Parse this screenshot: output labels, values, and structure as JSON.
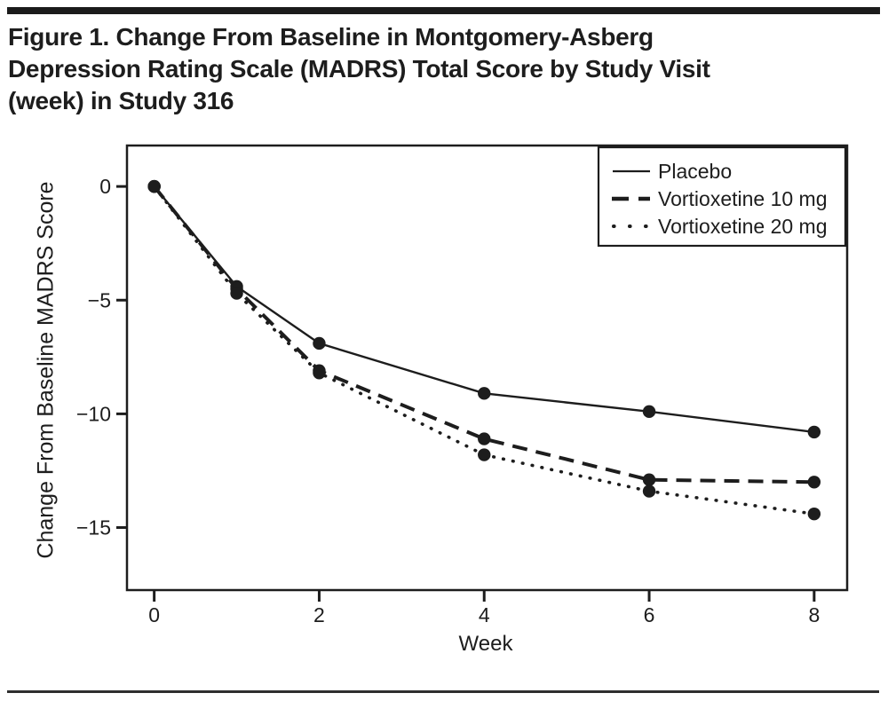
{
  "title_lines": [
    "Figure 1. Change From Baseline in Montgomery-Asberg",
    "Depression Rating Scale (MADRS) Total Score by Study Visit",
    "(week) in Study 316"
  ],
  "chart_data": {
    "type": "line",
    "title": "Figure 1. Change From Baseline in Montgomery-Asberg Depression Rating Scale (MADRS) Total Score by Study Visit (week) in Study 316",
    "xlabel": "Week",
    "ylabel": "Change From Baseline MADRS Score",
    "x": [
      0,
      1,
      2,
      4,
      6,
      8
    ],
    "xticks": [
      0,
      2,
      4,
      6,
      8
    ],
    "xtick_labels": [
      "0",
      "2",
      "4",
      "6",
      "8"
    ],
    "yticks": [
      0,
      -5,
      -10,
      -15
    ],
    "ytick_labels": [
      "0",
      "−5",
      "−10",
      "−15"
    ],
    "xlim": [
      -0.33,
      8.4
    ],
    "ylim": [
      -17.75,
      1.8
    ],
    "grid": false,
    "legend_position": "top-right",
    "ink_color": "#1d1d1d",
    "series": [
      {
        "name": "Placebo",
        "line_style": "solid",
        "values": [
          0,
          -4.4,
          -6.9,
          -9.1,
          -9.9,
          -10.8
        ]
      },
      {
        "name": "Vortioxetine 10 mg",
        "line_style": "dashed",
        "values": [
          0,
          -4.5,
          -8.1,
          -11.1,
          -12.9,
          -13.0
        ]
      },
      {
        "name": "Vortioxetine 20 mg",
        "line_style": "dotted",
        "values": [
          0,
          -4.7,
          -8.2,
          -11.8,
          -13.4,
          -14.4
        ]
      }
    ]
  }
}
